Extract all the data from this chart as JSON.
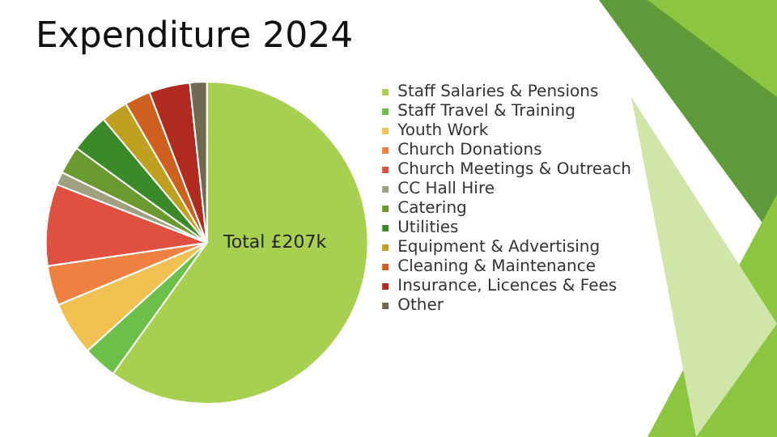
{
  "chart_data": {
    "type": "pie",
    "title": "Expenditure 2024",
    "categories": [
      "Staff Salaries & Pensions",
      "Staff Travel & Training",
      "Youth Work",
      "Church Donations",
      "Church Meetings & Outreach",
      "CC Hall Hire",
      "Catering",
      "Utilities",
      "Equipment & Advertising",
      "Cleaning & Maintenance",
      "Insurance, Licences & Fees",
      "Other"
    ],
    "values": [
      59.9,
      3.4,
      5.4,
      4.0,
      8.2,
      1.3,
      2.8,
      3.9,
      2.7,
      2.6,
      4.1,
      1.7
    ],
    "colors": [
      "#a8d050",
      "#6cc04a",
      "#f0c050",
      "#f08040",
      "#e05040",
      "#a0a080",
      "#6a9a30",
      "#3a8a2a",
      "#c0a020",
      "#d06020",
      "#b02a20",
      "#706a50"
    ],
    "legend": "right",
    "annotations": [
      "Total £207k"
    ]
  }
}
